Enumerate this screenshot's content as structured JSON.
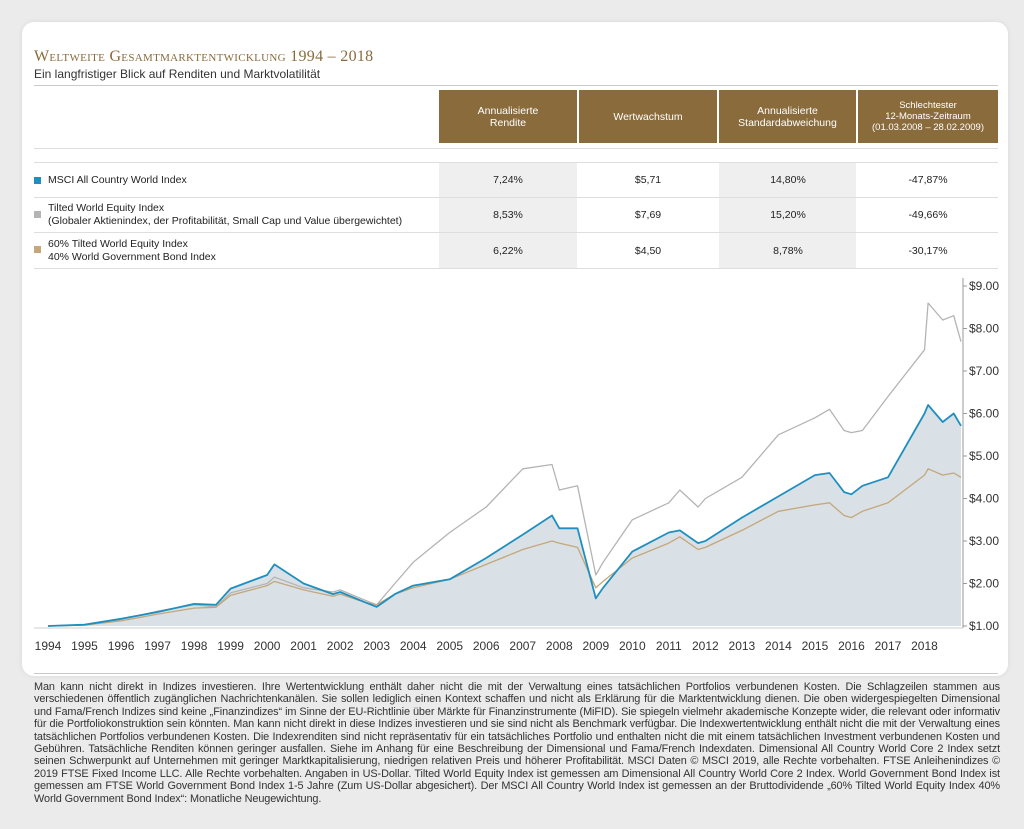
{
  "header": {
    "title": "Weltweite Gesamtmarktentwicklung 1994 – 2018",
    "subtitle": "Ein langfristiger Blick auf Renditen und Marktvolatilität"
  },
  "table": {
    "columns": [
      "Annualisierte\nRendite",
      "Wertwachstum",
      "Annualisierte\nStandardabweichung",
      "Schlechtester\n12-Monats-Zeitraum\n(01.03.2008 – 28.02.2009)"
    ],
    "rows": [
      {
        "name": "MSCI All Country World Index",
        "color": "#1f8fbf",
        "values": [
          "7,24%",
          "$5,71",
          "14,80%",
          "-47,87%"
        ]
      },
      {
        "name": "Tilted World Equity Index\n(Globaler Aktienindex, der Profitabilität, Small Cap und Value übergewichtet)",
        "color": "#b4b4b4",
        "values": [
          "8,53%",
          "$7,69",
          "15,20%",
          "-49,66%"
        ]
      },
      {
        "name": "60% Tilted World Equity Index\n40% World Government Bond Index",
        "color": "#c4a77a",
        "values": [
          "6,22%",
          "$4,50",
          "8,78%",
          "-30,17%"
        ]
      }
    ]
  },
  "chart_data": {
    "type": "line",
    "x": [
      1994.0,
      1995.0,
      1996.0,
      1997.0,
      1998.0,
      1998.6,
      1999.0,
      2000.0,
      2000.2,
      2001.0,
      2001.8,
      2002.0,
      2002.7,
      2003.0,
      2003.5,
      2004.0,
      2005.0,
      2006.0,
      2007.0,
      2007.8,
      2008.0,
      2008.5,
      2009.0,
      2009.2,
      2010.0,
      2011.0,
      2011.3,
      2011.8,
      2012.0,
      2013.0,
      2014.0,
      2015.0,
      2015.4,
      2015.8,
      2016.0,
      2016.3,
      2017.0,
      2018.0,
      2018.1,
      2018.5,
      2018.8,
      2019.0
    ],
    "series": [
      {
        "name": "MSCI All Country World Index",
        "color": "#1f8fbf",
        "values": [
          1.0,
          1.03,
          1.17,
          1.33,
          1.52,
          1.5,
          1.88,
          2.2,
          2.45,
          2.0,
          1.75,
          1.8,
          1.55,
          1.45,
          1.75,
          1.95,
          2.1,
          2.6,
          3.15,
          3.6,
          3.3,
          3.3,
          1.65,
          1.9,
          2.75,
          3.2,
          3.25,
          2.95,
          3.0,
          3.55,
          4.05,
          4.55,
          4.6,
          4.15,
          4.1,
          4.3,
          4.5,
          6.0,
          6.2,
          5.8,
          6.0,
          5.71
        ]
      },
      {
        "name": "Tilted World Equity Index",
        "color": "#b4b4b4",
        "values": [
          1.0,
          1.03,
          1.15,
          1.35,
          1.5,
          1.45,
          1.78,
          2.0,
          2.15,
          1.9,
          1.8,
          1.85,
          1.6,
          1.5,
          2.0,
          2.5,
          3.2,
          3.8,
          4.7,
          4.8,
          4.2,
          4.3,
          2.2,
          2.5,
          3.5,
          3.9,
          4.2,
          3.8,
          4.0,
          4.5,
          5.5,
          5.9,
          6.1,
          5.6,
          5.55,
          5.6,
          6.4,
          7.5,
          8.6,
          8.2,
          8.3,
          7.69
        ]
      },
      {
        "name": "60% Tilted World Equity Index 40% World Government Bond Index",
        "color": "#c4a77a",
        "values": [
          1.0,
          1.02,
          1.12,
          1.28,
          1.42,
          1.44,
          1.72,
          1.95,
          2.05,
          1.85,
          1.7,
          1.75,
          1.55,
          1.5,
          1.75,
          1.9,
          2.1,
          2.45,
          2.8,
          3.0,
          2.95,
          2.85,
          1.9,
          2.05,
          2.6,
          2.95,
          3.1,
          2.8,
          2.85,
          3.25,
          3.7,
          3.85,
          3.9,
          3.6,
          3.55,
          3.7,
          3.9,
          4.55,
          4.7,
          4.55,
          4.6,
          4.5
        ]
      }
    ],
    "xticks": [
      "1994",
      "1995",
      "1996",
      "1997",
      "1998",
      "1999",
      "2000",
      "2001",
      "2002",
      "2003",
      "2004",
      "2005",
      "2006",
      "2007",
      "2008",
      "2009",
      "2010",
      "2011",
      "2012",
      "2013",
      "2014",
      "2015",
      "2016",
      "2017",
      "2018"
    ],
    "yticks": [
      "$1.00",
      "$2.00",
      "$3.00",
      "$4.00",
      "$5.00",
      "$6.00",
      "$7.00",
      "$8.00",
      "$9.00"
    ],
    "ylim": [
      1,
      9
    ],
    "xlim": [
      1994,
      2019
    ],
    "area_fill": "#d9e1e7",
    "grid": false,
    "legend": "table-above"
  },
  "footnote": "Man kann nicht direkt in Indizes investieren. Ihre Wertentwicklung enthält daher nicht die mit der Verwaltung eines tatsächlichen Portfolios verbundenen Kosten. Die Schlagzeilen stammen aus verschiedenen öffentlich zugänglichen Nachrichtenkanälen. Sie sollen lediglich einen Kontext schaffen und nicht als Erklärung für die Marktentwicklung dienen. Die oben widergespiegelten Dimensional und Fama/French Indizes sind keine „Finanzindizes“ im Sinne der EU-Richtlinie über Märkte für Finanzinstrumente (MiFID). Sie spiegeln vielmehr akademische Konzepte wider, die relevant oder informativ für die Portfoliokonstruktion sein könnten. Man kann nicht direkt in diese Indizes investieren und sie sind nicht als Benchmark verfügbar. Die Indexwertentwicklung enthält nicht die mit der Verwaltung eines tatsächlichen Portfolios verbundenen Kosten. Die Indexrenditen sind nicht repräsentativ für ein tatsächliches Portfolio und enthalten nicht die mit einem tatsächlichen Investment verbundenen Kosten und Gebühren. Tatsächliche Renditen können geringer ausfallen. Siehe im Anhang für eine Beschreibung der Dimensional und Fama/French Indexdaten. Dimensional All Country World Core 2 Index setzt seinen Schwerpunkt auf Unternehmen mit geringer Marktkapitalisierung, niedrigen relativen Preis und höherer Profitabilität. MSCI Daten © MSCI 2019, alle Rechte vorbehalten. FTSE Anleihenindizes © 2019 FTSE Fixed Income LLC. Alle Rechte vorbehalten. Angaben in US-Dollar. Tilted World Equity Index ist gemessen am Dimensional All Country World Core 2 Index. World Government Bond Index ist gemessen am FTSE World Government Bond Index 1-5 Jahre (Zum US-Dollar abgesichert). Der MSCI All Country World Index ist gemessen an der Bruttodividende „60% Tilted World Equity Index 40% World Government Bond Index“: Monatliche Neugewichtung."
}
